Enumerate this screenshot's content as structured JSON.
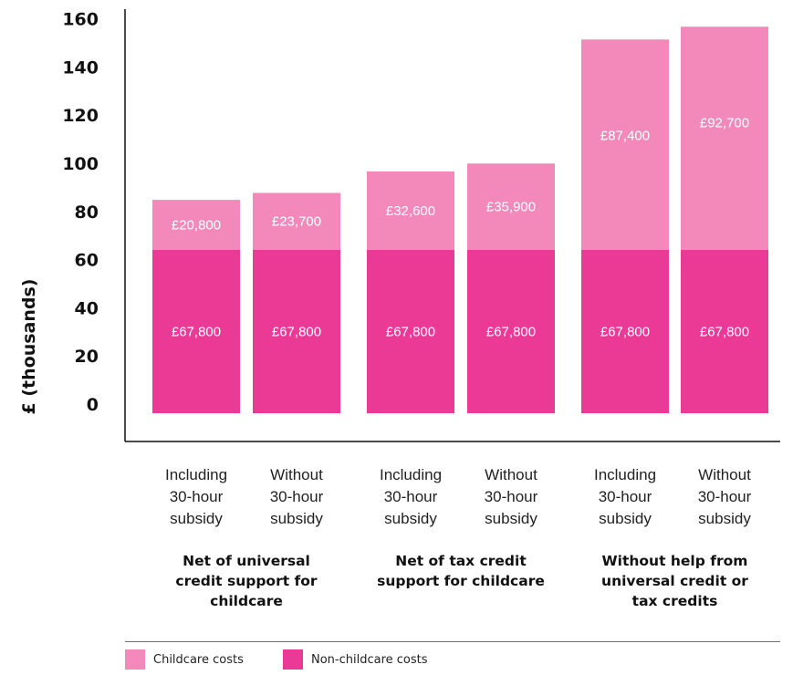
{
  "chart_data": {
    "type": "bar",
    "stacked": true,
    "ylabel": "£ (thousands)",
    "yticks": [
      0,
      20,
      40,
      60,
      80,
      100,
      120,
      140,
      160
    ],
    "ylim": [
      0,
      160
    ],
    "categories": [
      "Including 30-hour subsidy",
      "Without 30-hour subsidy",
      "Including 30-hour subsidy",
      "Without 30-hour subsidy",
      "Including 30-hour subsidy",
      "Without 30-hour subsidy"
    ],
    "category_lines": [
      [
        "Including",
        "30-hour",
        "subsidy"
      ],
      [
        "Without",
        "30-hour",
        "subsidy"
      ],
      [
        "Including",
        "30-hour",
        "subsidy"
      ],
      [
        "Without",
        "30-hour",
        "subsidy"
      ],
      [
        "Including",
        "30-hour",
        "subsidy"
      ],
      [
        "Without",
        "30-hour",
        "subsidy"
      ]
    ],
    "groups": [
      {
        "lines": [
          "Net of universal",
          "credit support for",
          "childcare"
        ]
      },
      {
        "lines": [
          "Net of tax credit",
          "support for childcare"
        ]
      },
      {
        "lines": [
          "Without help from",
          "universal credit or",
          "tax credits"
        ]
      }
    ],
    "series": [
      {
        "name": "Non-childcare costs",
        "color": "#ea3a95",
        "values": [
          67.8,
          67.8,
          67.8,
          67.8,
          67.8,
          67.8
        ],
        "labels": [
          "£67,800",
          "£67,800",
          "£67,800",
          "£67,800",
          "£67,800",
          "£67,800"
        ]
      },
      {
        "name": "Childcare costs",
        "color": "#f389bb",
        "values": [
          20.8,
          23.7,
          32.6,
          35.9,
          87.4,
          92.7
        ],
        "labels": [
          "£20,800",
          "£23,700",
          "£32,600",
          "£35,900",
          "£87,400",
          "£92,700"
        ]
      }
    ],
    "legend": {
      "position": "bottom-left",
      "items": [
        "Childcare costs",
        "Non-childcare costs"
      ]
    }
  }
}
